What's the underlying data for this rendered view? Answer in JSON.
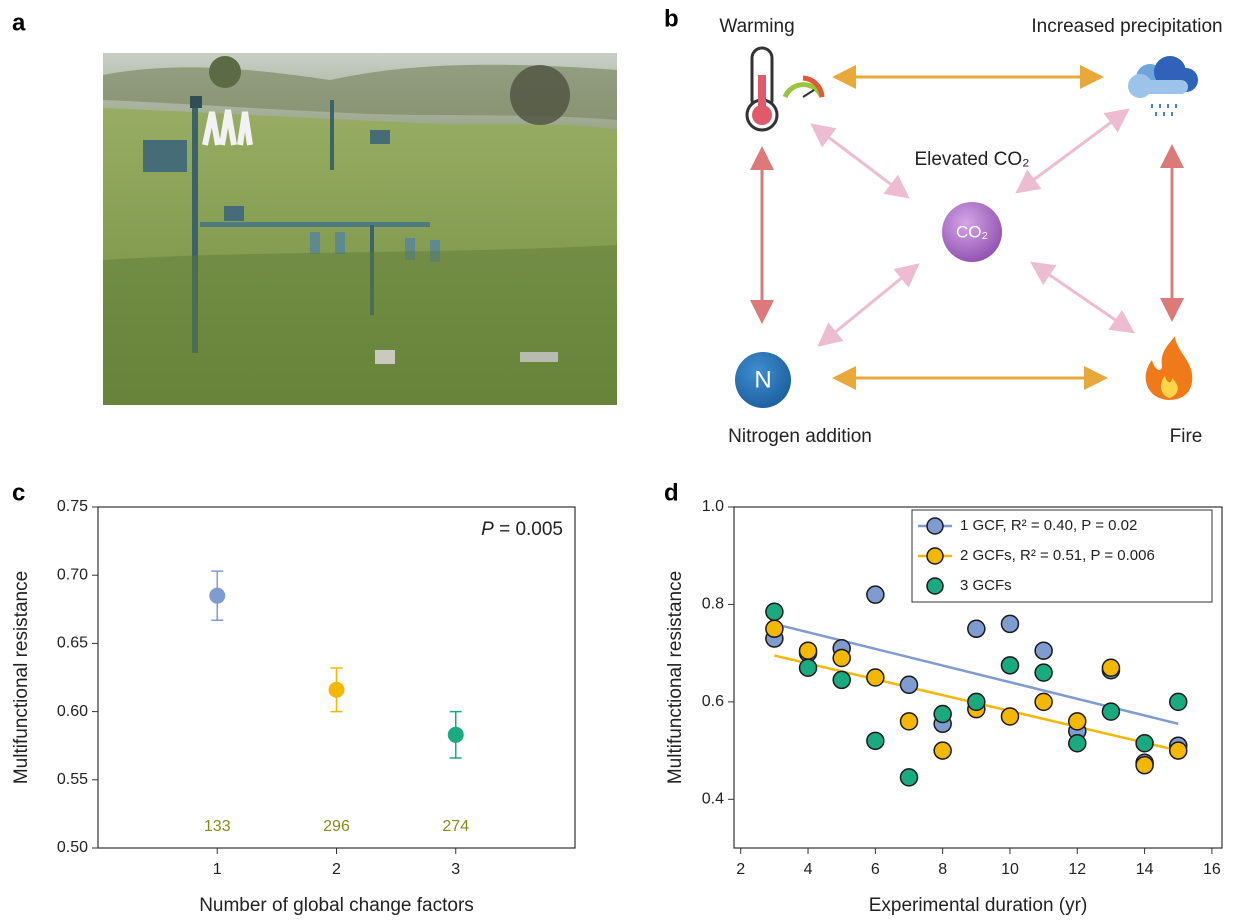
{
  "panel_labels": [
    "a",
    "b",
    "c",
    "d"
  ],
  "diagram": {
    "warming": "Warming",
    "precipitation": "Increased precipitation",
    "co2": "Elevated CO₂",
    "co2_icon": "CO₂",
    "nitrogen": "Nitrogen addition",
    "nitrogen_icon": "N",
    "fire": "Fire"
  },
  "chart_data": [
    {
      "type": "errorbar",
      "x": [
        1,
        2,
        3
      ],
      "values": [
        0.685,
        0.616,
        0.583
      ],
      "errors": [
        0.018,
        0.016,
        0.017
      ],
      "colors": [
        "#7f9cd0",
        "#f5b800",
        "#1aaa7f"
      ],
      "n_labels": [
        133,
        296,
        274
      ],
      "annotation": [
        "P",
        " = 0.005"
      ],
      "xlabel": "Number of global change factors",
      "ylabel": "Multifunctional resistance",
      "xlim": [
        0,
        4
      ],
      "xticks": [
        1,
        2,
        3
      ],
      "ylim": [
        0.5,
        0.75
      ],
      "yticks": [
        {
          "value": 0.5,
          "label": "0.50"
        },
        0.55,
        {
          "value": 0.6,
          "label": "0.60"
        },
        0.65,
        {
          "value": 0.7,
          "label": "0.70"
        },
        0.75
      ],
      "grid": false
    },
    {
      "type": "scatter",
      "xlabel": "Experimental duration (yr)",
      "ylabel": "Multifunctional resistance",
      "xlim": [
        1.8,
        16.3
      ],
      "xticks": [
        2,
        4,
        6,
        8,
        10,
        12,
        14,
        16
      ],
      "ylim": [
        0.3,
        1.0
      ],
      "yticks": [
        0.4,
        0.6,
        0.8,
        {
          "value": 1,
          "label": "1.0"
        }
      ],
      "grid": false,
      "legend": "upper right",
      "series": [
        {
          "name": "1 GCF, R² = 0.40, P = 0.02",
          "color": "#7f9cd0",
          "x": [
            3,
            4,
            5,
            6,
            7,
            8,
            9,
            10,
            11,
            12,
            13,
            14,
            15
          ],
          "values": [
            0.73,
            0.7,
            0.71,
            0.82,
            0.635,
            0.555,
            0.75,
            0.76,
            0.705,
            0.54,
            0.665,
            0.475,
            0.51
          ],
          "trend": {
            "x": [
              3,
              15
            ],
            "values": [
              0.76,
              0.555
            ]
          }
        },
        {
          "name": "2 GCFs, R² = 0.51, P = 0.006",
          "color": "#f5b800",
          "x": [
            3,
            4,
            5,
            6,
            7,
            8,
            9,
            10,
            11,
            12,
            13,
            14,
            15
          ],
          "values": [
            0.75,
            0.705,
            0.69,
            0.65,
            0.56,
            0.5,
            0.585,
            0.57,
            0.6,
            0.56,
            0.67,
            0.47,
            0.5
          ],
          "trend": {
            "x": [
              3,
              15
            ],
            "values": [
              0.695,
              0.5
            ]
          }
        },
        {
          "name": "3 GCFs",
          "color": "#1aaa7f",
          "x": [
            3,
            4,
            5,
            6,
            7,
            8,
            9,
            10,
            11,
            12,
            13,
            14,
            15
          ],
          "values": [
            0.785,
            0.67,
            0.645,
            0.52,
            0.445,
            0.575,
            0.6,
            0.675,
            0.66,
            0.515,
            0.58,
            0.515,
            0.6
          ]
        }
      ]
    }
  ]
}
